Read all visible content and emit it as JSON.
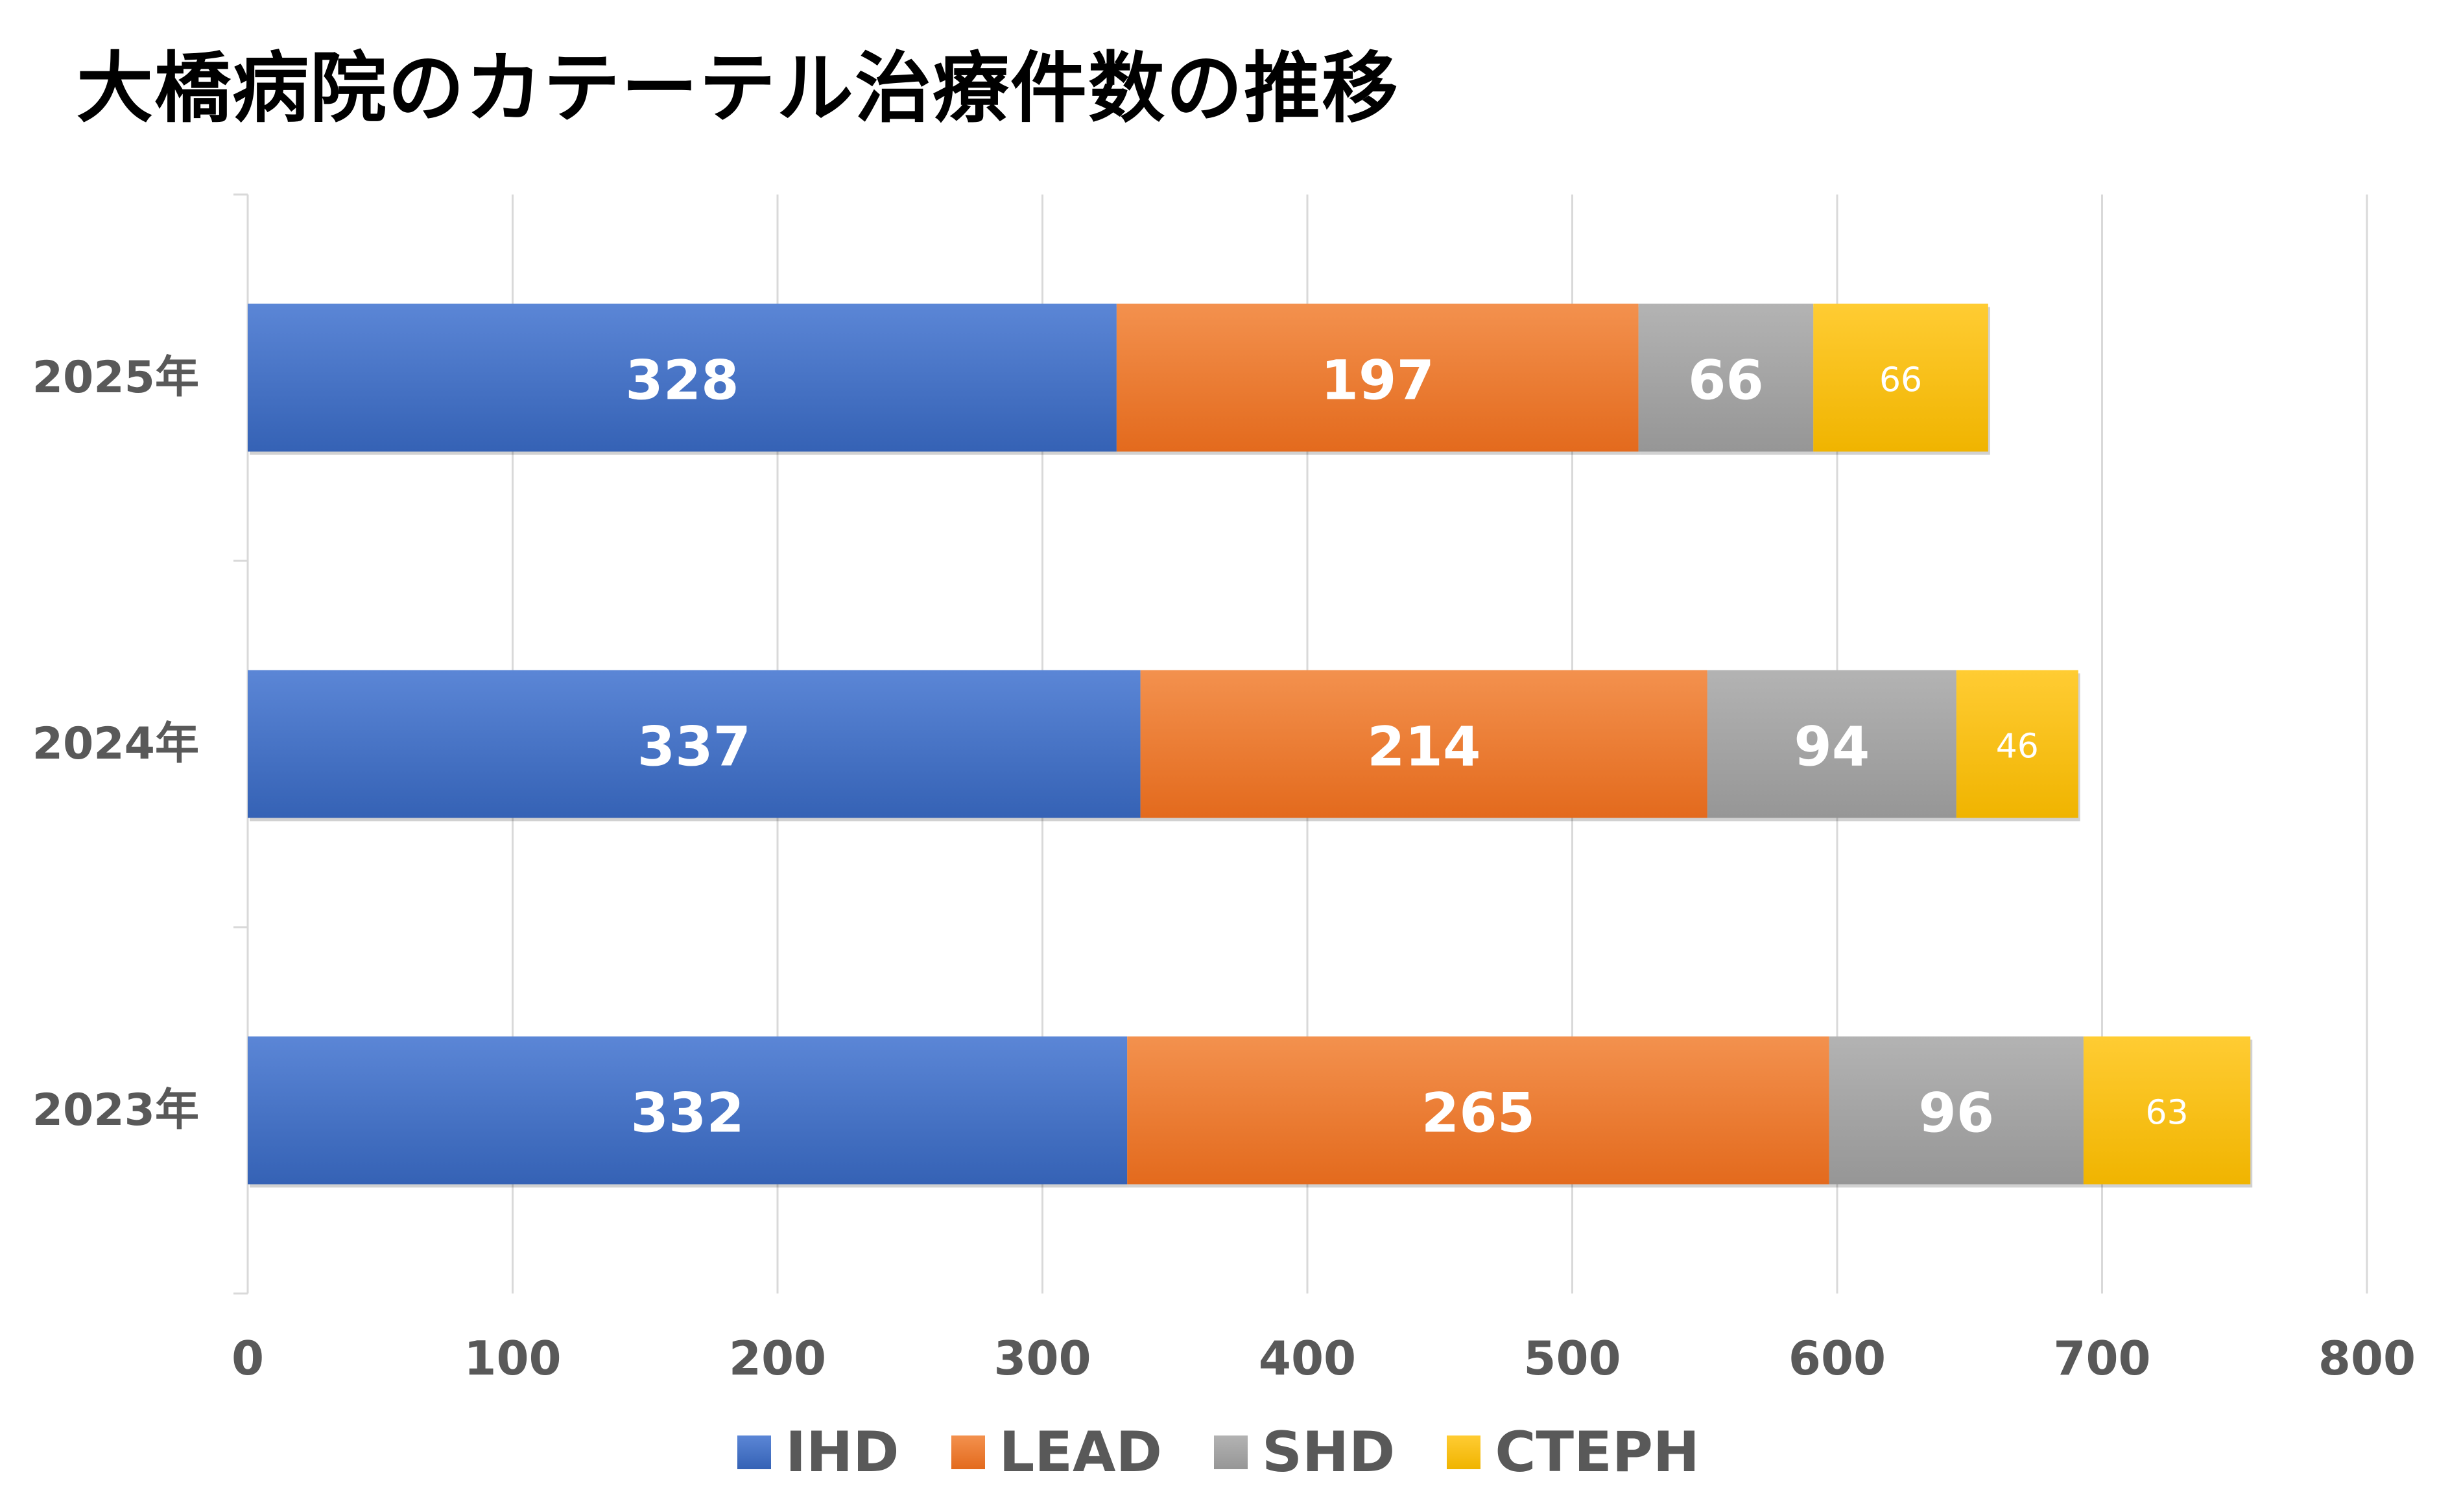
{
  "chart_data": {
    "type": "bar",
    "orientation": "horizontal",
    "stacked": true,
    "title": "大橋病院のカテーテル治療件数の推移",
    "categories": [
      "2025年",
      "2024年",
      "2023年"
    ],
    "series": [
      {
        "name": "IHD",
        "values": [
          328,
          337,
          332
        ],
        "color": "#4472C4",
        "color_light": "#5B86D6",
        "color_dark": "#3562B5",
        "label_style": "big"
      },
      {
        "name": "LEAD",
        "values": [
          197,
          214,
          265
        ],
        "color": "#ED7D31",
        "color_light": "#F3914E",
        "color_dark": "#E36A1D",
        "label_style": "big"
      },
      {
        "name": "SHD",
        "values": [
          66,
          94,
          96
        ],
        "color": "#A5A5A5",
        "color_light": "#B3B3B3",
        "color_dark": "#969696",
        "label_style": "big"
      },
      {
        "name": "CTEPH",
        "values": [
          66,
          46,
          63
        ],
        "color": "#FFC000",
        "color_light": "#FFCC33",
        "color_dark": "#F0B400",
        "label_style": "small"
      }
    ],
    "xlim": [
      0,
      800
    ],
    "x_ticks": [
      0,
      100,
      200,
      300,
      400,
      500,
      600,
      700,
      800
    ],
    "grid": "vertical",
    "legend_position": "bottom"
  }
}
